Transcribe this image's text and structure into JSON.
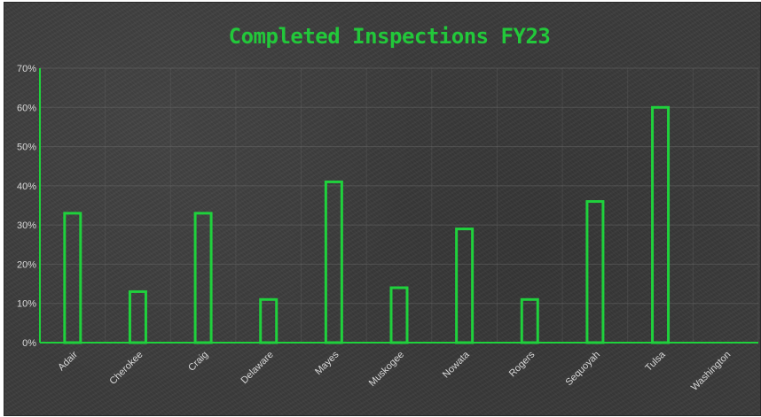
{
  "chart_data": {
    "type": "bar",
    "title": "Completed Inspections FY23",
    "xlabel": "",
    "ylabel": "",
    "categories": [
      "Adair",
      "Cherokee",
      "Craig",
      "Delaware",
      "Mayes",
      "Muskogee",
      "Nowata",
      "Rogers",
      "Sequoyah",
      "Tulsa",
      "Washington"
    ],
    "values": [
      33,
      13,
      33,
      11,
      41,
      14,
      29,
      11,
      36,
      60,
      0
    ],
    "ylim": [
      0,
      70
    ],
    "yticks": [
      0,
      10,
      20,
      30,
      40,
      50,
      60,
      70
    ],
    "ytick_labels": [
      "0%",
      "10%",
      "20%",
      "30%",
      "40%",
      "50%",
      "60%",
      "70%"
    ],
    "grid": true,
    "legend": "none",
    "colors": {
      "bar_stroke": "#1fd13c",
      "axis": "#1fd13c",
      "title": "#22c83a",
      "background": "#3c3c3c",
      "grid": "#6a6a6a"
    }
  }
}
